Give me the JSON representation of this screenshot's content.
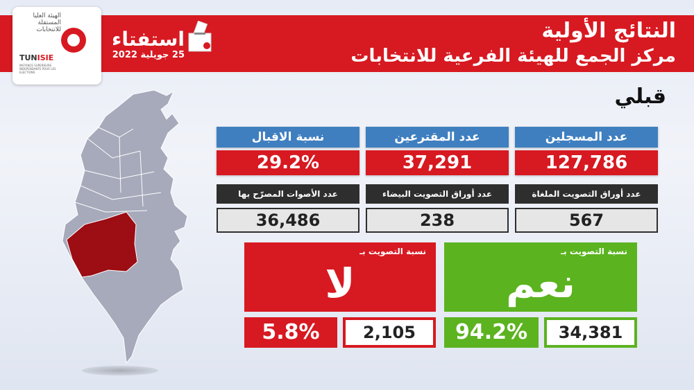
{
  "header": {
    "title": "النتائج الأولية",
    "subtitle": "مركز الجمع للهيئة الفرعية للانتخابات",
    "referendum_title": "استفتاء",
    "referendum_date": "25 جويلية 2022",
    "isie_arabic": "الهيئة العليا المستقلة للانتخابات",
    "isie_logo_prefix": "TUN",
    "isie_logo_suffix": "ISIE",
    "isie_french": "INSTANCE SUPERIEURE INDEPENDANTE POUR LES ELECTIONS"
  },
  "governorate": "قبلي",
  "stats": {
    "participation": {
      "label": "نسبة الاقبال",
      "value": "29.2%"
    },
    "voters": {
      "label": "عدد المقترعين",
      "value": "37,291"
    },
    "registered": {
      "label": "عدد المسجلين",
      "value": "127,786"
    }
  },
  "substats": {
    "declared": {
      "label": "عدد الأصوات المصرّح بها",
      "value": "36,486"
    },
    "blank": {
      "label": "عدد أوراق التصويت البيضاء",
      "value": "238"
    },
    "cancelled": {
      "label": "عدد أوراق التصويت الملغاة",
      "value": "567"
    }
  },
  "results": {
    "no": {
      "label": "نسبة التصويت بـ",
      "word": "لا",
      "percent": "5.8%",
      "count": "2,105"
    },
    "yes": {
      "label": "نسبة التصويت بـ",
      "word": "نعم",
      "percent": "94.2%",
      "count": "34,381"
    }
  },
  "colors": {
    "brand_red": "#d71921",
    "header_blue": "#3f7fc0",
    "dark_gray": "#2e2e2e",
    "yes_green": "#5bb31f",
    "map_gray": "#a6aabb",
    "highlight_region": "#9c0d14"
  },
  "icons": {
    "ballot": "ballot-box-icon",
    "flag": "tunisia-flag-icon",
    "map": "tunisia-map-icon"
  }
}
